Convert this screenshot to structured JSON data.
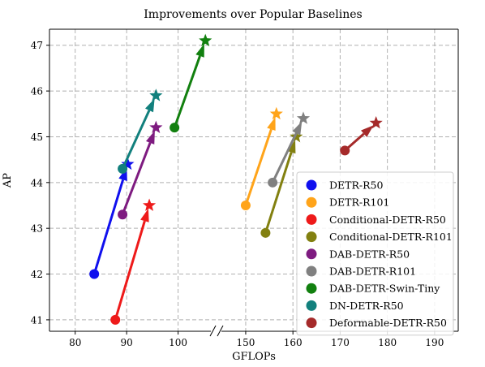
{
  "chart_data": {
    "type": "scatter",
    "title": "Improvements over Popular Baselines",
    "xlabel": "GFLOPs",
    "ylabel": "AP",
    "axis_break": true,
    "x_segments": [
      {
        "range": [
          75,
          107
        ],
        "ticks": [
          80,
          90,
          100
        ]
      },
      {
        "range": [
          144,
          195
        ],
        "ticks": [
          150,
          160,
          170,
          180,
          190
        ]
      }
    ],
    "ylim": [
      40.75,
      47.35
    ],
    "y_ticks": [
      41,
      42,
      43,
      44,
      45,
      46,
      47
    ],
    "grid": true,
    "legend_position": "lower-right",
    "series": [
      {
        "name": "DETR-R50",
        "color": "#1010ee",
        "baseline": [
          83.7,
          42.0
        ],
        "improved": [
          90.2,
          44.4
        ]
      },
      {
        "name": "DETR-R101",
        "color": "#ffa41a",
        "baseline": [
          150.0,
          43.5
        ],
        "improved": [
          156.5,
          45.5
        ]
      },
      {
        "name": "Conditional-DETR-R50",
        "color": "#ee1a1a",
        "baseline": [
          87.8,
          41.0
        ],
        "improved": [
          94.4,
          43.5
        ]
      },
      {
        "name": "Conditional-DETR-R101",
        "color": "#828010",
        "baseline": [
          154.2,
          42.9
        ],
        "improved": [
          160.7,
          45.0
        ]
      },
      {
        "name": "DAB-DETR-R50",
        "color": "#7e1b80",
        "baseline": [
          89.2,
          43.3
        ],
        "improved": [
          95.7,
          45.2
        ]
      },
      {
        "name": "DAB-DETR-R101",
        "color": "#808080",
        "baseline": [
          155.7,
          44.0
        ],
        "improved": [
          162.2,
          45.4
        ]
      },
      {
        "name": "DAB-DETR-Swin-Tiny",
        "color": "#12800f",
        "baseline": [
          99.3,
          45.2
        ],
        "improved": [
          105.3,
          47.1
        ]
      },
      {
        "name": "DN-DETR-R50",
        "color": "#12807d",
        "baseline": [
          89.2,
          44.3
        ],
        "improved": [
          95.7,
          45.9
        ]
      },
      {
        "name": "Deformable-DETR-R50",
        "color": "#a52a2a",
        "baseline": [
          171.0,
          44.7
        ],
        "improved": [
          177.6,
          45.3
        ]
      }
    ]
  }
}
